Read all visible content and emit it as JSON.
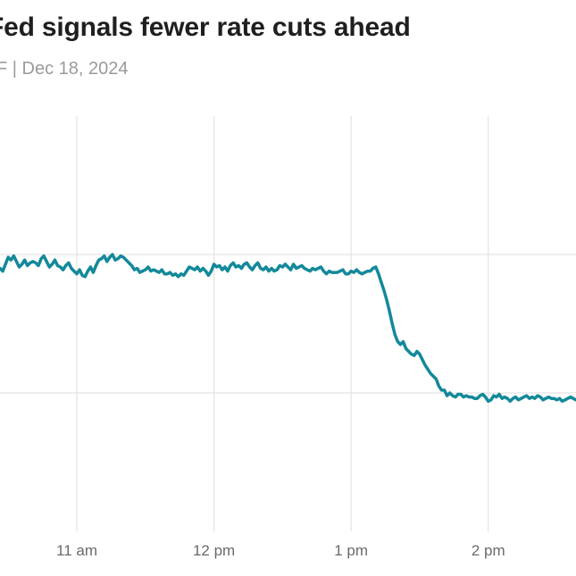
{
  "header": {
    "title": "Fed signals fewer rate cuts ahead",
    "subtitle": "F | Dec 18, 2024"
  },
  "colors": {
    "line": "#13899a",
    "grid": "#e3e3e3",
    "tick_text": "#6a6a6a"
  },
  "chart_data": {
    "type": "line",
    "title": "Fed signals fewer rate cuts ahead",
    "subtitle": "F | Dec 18, 2024",
    "xlabel": "",
    "ylabel": "",
    "grid": true,
    "x_ticks": [
      "11 am",
      "12 pm",
      "1 pm",
      "2 pm"
    ],
    "x_tick_hours": [
      11,
      12,
      13,
      14
    ],
    "xlim": [
      10.44,
      14.64
    ],
    "ylim": [
      0,
      3
    ],
    "y_gridlines": [
      1,
      2
    ],
    "series": [
      {
        "x": [
          10.44,
          10.46,
          10.48,
          10.5,
          10.52,
          10.54,
          10.56,
          10.58,
          10.6,
          10.62,
          10.64,
          10.66,
          10.68,
          10.7,
          10.72,
          10.74,
          10.76,
          10.78,
          10.8,
          10.82,
          10.84,
          10.86,
          10.88,
          10.9,
          10.92,
          10.94,
          10.96,
          10.98,
          11.0,
          11.02,
          11.04,
          11.06,
          11.08,
          11.1,
          11.12,
          11.14,
          11.16,
          11.18,
          11.2,
          11.22,
          11.24,
          11.26,
          11.28,
          11.3,
          11.32,
          11.34,
          11.36,
          11.38,
          11.4,
          11.42,
          11.44,
          11.46,
          11.48,
          11.5,
          11.52,
          11.54,
          11.56,
          11.58,
          11.6,
          11.62,
          11.64,
          11.66,
          11.68,
          11.7,
          11.72,
          11.74,
          11.76,
          11.78,
          11.8,
          11.82,
          11.84,
          11.86,
          11.88,
          11.9,
          11.92,
          11.94,
          11.96,
          11.98,
          12.0,
          12.02,
          12.04,
          12.06,
          12.08,
          12.1,
          12.12,
          12.14,
          12.16,
          12.18,
          12.2,
          12.22,
          12.24,
          12.26,
          12.28,
          12.3,
          12.32,
          12.34,
          12.36,
          12.38,
          12.4,
          12.42,
          12.44,
          12.46,
          12.48,
          12.5,
          12.52,
          12.54,
          12.56,
          12.58,
          12.6,
          12.62,
          12.64,
          12.66,
          12.68,
          12.7,
          12.72,
          12.74,
          12.76,
          12.78,
          12.8,
          12.82,
          12.84,
          12.86,
          12.88,
          12.9,
          12.92,
          12.94,
          12.96,
          12.98,
          13.0,
          13.02,
          13.04,
          13.06,
          13.08,
          13.1,
          13.12,
          13.14,
          13.16,
          13.18,
          13.2,
          13.22,
          13.24,
          13.26,
          13.28,
          13.3,
          13.32,
          13.34,
          13.36,
          13.38,
          13.4,
          13.42,
          13.44,
          13.46,
          13.48,
          13.5,
          13.52,
          13.54,
          13.56,
          13.58,
          13.6,
          13.62,
          13.64,
          13.66,
          13.68,
          13.7,
          13.72,
          13.74,
          13.76,
          13.78,
          13.8,
          13.82,
          13.84,
          13.86,
          13.88,
          13.9,
          13.92,
          13.94,
          13.96,
          13.98,
          14.0,
          14.02,
          14.04,
          14.06,
          14.08,
          14.1,
          14.12,
          14.14,
          14.16,
          14.18,
          14.2,
          14.22,
          14.24,
          14.26,
          14.28,
          14.3,
          14.32,
          14.34,
          14.36,
          14.38,
          14.4,
          14.42,
          14.44,
          14.46,
          14.48,
          14.5,
          14.52,
          14.54,
          14.56,
          14.58,
          14.6,
          14.62,
          14.64
        ],
        "y": [
          1.9,
          1.88,
          1.93,
          1.98,
          1.96,
          1.99,
          1.95,
          1.91,
          1.93,
          1.96,
          1.92,
          1.94,
          1.95,
          1.94,
          1.92,
          1.97,
          1.99,
          1.95,
          1.91,
          1.93,
          1.96,
          1.92,
          1.91,
          1.89,
          1.92,
          1.94,
          1.9,
          1.88,
          1.86,
          1.89,
          1.85,
          1.84,
          1.88,
          1.91,
          1.87,
          1.92,
          1.96,
          1.97,
          1.99,
          1.95,
          1.98,
          2.0,
          1.96,
          1.97,
          1.99,
          1.98,
          1.96,
          1.94,
          1.92,
          1.89,
          1.9,
          1.87,
          1.88,
          1.89,
          1.91,
          1.88,
          1.89,
          1.88,
          1.87,
          1.89,
          1.86,
          1.86,
          1.87,
          1.85,
          1.86,
          1.84,
          1.86,
          1.85,
          1.88,
          1.91,
          1.9,
          1.89,
          1.91,
          1.88,
          1.9,
          1.88,
          1.85,
          1.88,
          1.93,
          1.91,
          1.92,
          1.89,
          1.91,
          1.88,
          1.92,
          1.94,
          1.91,
          1.92,
          1.9,
          1.93,
          1.94,
          1.91,
          1.89,
          1.92,
          1.94,
          1.9,
          1.89,
          1.91,
          1.88,
          1.9,
          1.88,
          1.89,
          1.92,
          1.91,
          1.93,
          1.91,
          1.89,
          1.93,
          1.9,
          1.91,
          1.92,
          1.9,
          1.89,
          1.88,
          1.9,
          1.89,
          1.9,
          1.91,
          1.88,
          1.86,
          1.88,
          1.87,
          1.87,
          1.87,
          1.88,
          1.89,
          1.86,
          1.86,
          1.88,
          1.87,
          1.89,
          1.87,
          1.86,
          1.87,
          1.88,
          1.88,
          1.9,
          1.91,
          1.86,
          1.8,
          1.74,
          1.67,
          1.59,
          1.5,
          1.42,
          1.37,
          1.35,
          1.37,
          1.32,
          1.3,
          1.28,
          1.27,
          1.3,
          1.28,
          1.24,
          1.2,
          1.17,
          1.14,
          1.12,
          1.1,
          1.05,
          1.02,
          1.02,
          0.98,
          1.0,
          0.98,
          0.97,
          0.99,
          0.99,
          0.97,
          0.98,
          0.97,
          0.97,
          0.96,
          0.96,
          0.98,
          0.99,
          0.97,
          0.94,
          0.95,
          0.98,
          0.97,
          0.99,
          0.96,
          0.97,
          0.96,
          0.94,
          0.96,
          0.97,
          0.95,
          0.96,
          0.97,
          0.98,
          0.96,
          0.97,
          0.96,
          0.98,
          0.97,
          0.95,
          0.96,
          0.97,
          0.96,
          0.96,
          0.95,
          0.96,
          0.94,
          0.95,
          0.96,
          0.97,
          0.96,
          0.95
        ]
      }
    ]
  }
}
